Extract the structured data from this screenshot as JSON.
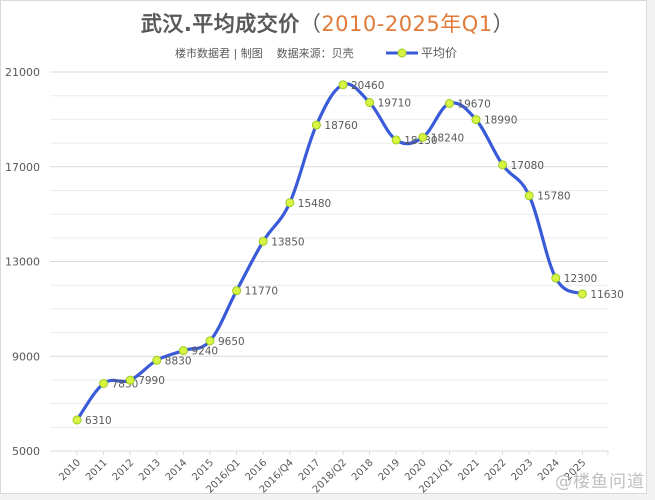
{
  "header": {
    "title_main": "武汉.平均成交价",
    "title_open": "（",
    "title_range": "2010-2025年Q1",
    "title_close": "）",
    "subtitle": "楼市数据君 | 制图    数据来源：贝壳",
    "legend_label": "平均价"
  },
  "watermark": "@楼鱼问道",
  "colors": {
    "line": "#3a5bd9",
    "marker_fill": "#d7f542",
    "marker_stroke": "#9ccc20",
    "title_accent": "#e07b39",
    "grid_major": "#d9d9d9",
    "grid_minor": "#ececec",
    "text": "#595959"
  },
  "chart_data": {
    "type": "line",
    "title": "武汉.平均成交价（2010-2025年Q1）",
    "subtitle": "楼市数据君 | 制图 数据来源：贝壳",
    "xlabel": "",
    "ylabel": "",
    "categories": [
      "2010",
      "2011",
      "2012",
      "2013",
      "2014",
      "2015",
      "2016/Q1",
      "2016",
      "2016/Q4",
      "2017",
      "2018/Q2",
      "2018",
      "2019",
      "2020",
      "2021/Q1",
      "2021",
      "2022",
      "2023",
      "2024",
      "2025"
    ],
    "series": [
      {
        "name": "平均价",
        "values": [
          6310,
          7850,
          7990,
          8830,
          9240,
          9650,
          11770,
          13850,
          15480,
          18760,
          20460,
          19710,
          18130,
          18240,
          19670,
          18990,
          17080,
          15780,
          12300,
          11630
        ]
      }
    ],
    "ylim": [
      5000,
      21000
    ],
    "yticks": [
      5000,
      9000,
      13000,
      17000,
      21000
    ],
    "minor_grid_step": 1000,
    "grid": true,
    "smooth": true,
    "data_labels": true,
    "legend_position": "top"
  }
}
